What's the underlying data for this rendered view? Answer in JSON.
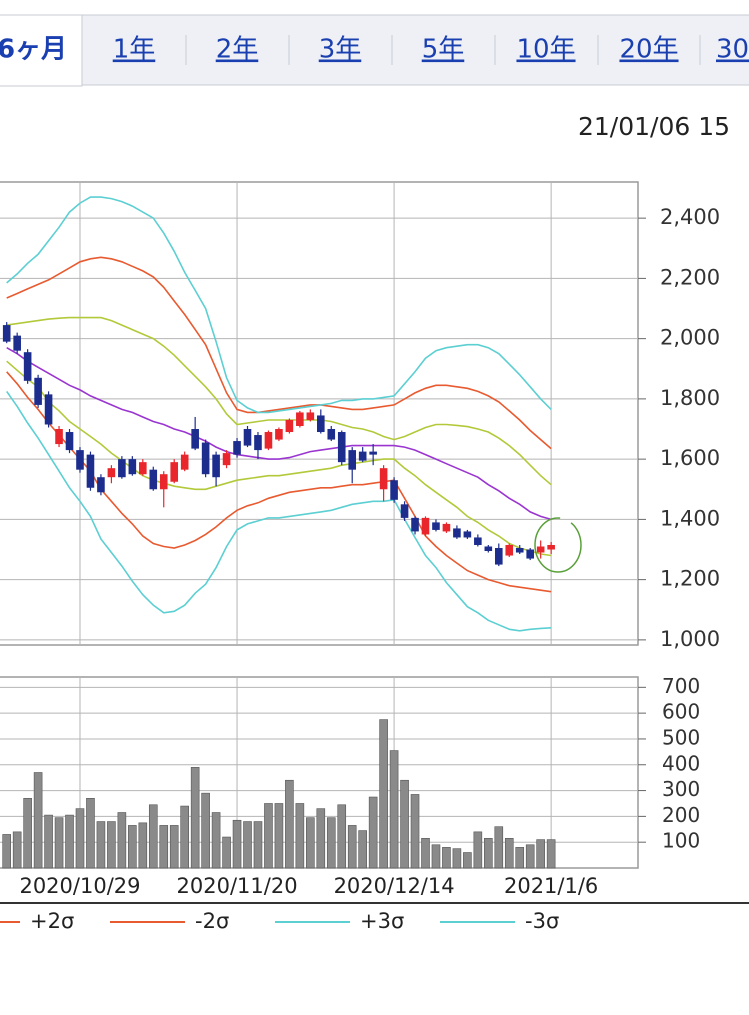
{
  "tabs": [
    "6ヶ月",
    "1年",
    "2年",
    "3年",
    "5年",
    "10年",
    "20年",
    "30"
  ],
  "timestamp": "21/01/06 15",
  "chart_data": [
    {
      "type": "candlestick",
      "categories": [
        null,
        null,
        null,
        null,
        null,
        null,
        null,
        "2020/10/29",
        null,
        null,
        null,
        null,
        null,
        null,
        null,
        null,
        null,
        null,
        null,
        null,
        null,
        null,
        "2020/11/20",
        null,
        null,
        null,
        null,
        null,
        null,
        null,
        null,
        null,
        null,
        null,
        null,
        null,
        null,
        "2020/12/14",
        null,
        null,
        null,
        null,
        null,
        null,
        null,
        null,
        null,
        null,
        null,
        null,
        null,
        null,
        "2021/1/6"
      ],
      "open": [
        2045,
        2010,
        1955,
        1870,
        1815,
        1650,
        1690,
        1630,
        1615,
        1540,
        1540,
        1600,
        1600,
        1550,
        1565,
        1500,
        1525,
        1565,
        1700,
        1655,
        1615,
        1580,
        1660,
        1700,
        1680,
        1635,
        1665,
        1690,
        1710,
        1730,
        1745,
        1700,
        1690,
        1630,
        1625,
        1625,
        1500,
        1530,
        1450,
        1405,
        1350,
        1390,
        1360,
        1370,
        1360,
        1340,
        1310,
        1305,
        1280,
        1305,
        1300,
        1290,
        1300
      ],
      "high": [
        2055,
        2020,
        1965,
        1880,
        1825,
        1710,
        1700,
        1640,
        1625,
        1550,
        1580,
        1610,
        1610,
        1600,
        1575,
        1560,
        1600,
        1625,
        1740,
        1665,
        1625,
        1630,
        1670,
        1710,
        1690,
        1695,
        1705,
        1735,
        1760,
        1765,
        1765,
        1710,
        1695,
        1640,
        1640,
        1650,
        1580,
        1540,
        1460,
        1410,
        1410,
        1400,
        1390,
        1380,
        1365,
        1350,
        1315,
        1320,
        1320,
        1315,
        1305,
        1330,
        1325
      ],
      "low": [
        1985,
        1950,
        1850,
        1770,
        1705,
        1640,
        1620,
        1555,
        1495,
        1480,
        1520,
        1535,
        1545,
        1545,
        1495,
        1440,
        1520,
        1560,
        1630,
        1540,
        1510,
        1570,
        1605,
        1640,
        1600,
        1630,
        1660,
        1685,
        1705,
        1725,
        1685,
        1660,
        1580,
        1520,
        1590,
        1580,
        1460,
        1455,
        1395,
        1350,
        1345,
        1360,
        1355,
        1335,
        1335,
        1310,
        1290,
        1245,
        1275,
        1285,
        1265,
        1270,
        1285
      ],
      "close": [
        1990,
        1960,
        1860,
        1780,
        1715,
        1700,
        1630,
        1565,
        1505,
        1490,
        1570,
        1540,
        1550,
        1590,
        1500,
        1550,
        1590,
        1615,
        1635,
        1550,
        1540,
        1620,
        1615,
        1645,
        1630,
        1690,
        1700,
        1730,
        1755,
        1755,
        1690,
        1665,
        1590,
        1565,
        1595,
        1615,
        1570,
        1465,
        1405,
        1360,
        1405,
        1365,
        1385,
        1340,
        1340,
        1315,
        1295,
        1250,
        1315,
        1290,
        1270,
        1310,
        1315
      ],
      "up_color": "#e8262c",
      "down_color": "#1c2d8e",
      "series": [
        {
          "color": "#9a35d0",
          "values": [
            1970,
            1950,
            1925,
            1905,
            1885,
            1865,
            1845,
            1830,
            1810,
            1795,
            1780,
            1765,
            1755,
            1740,
            1725,
            1715,
            1700,
            1690,
            1675,
            1660,
            1640,
            1625,
            1615,
            1610,
            1605,
            1600,
            1600,
            1605,
            1615,
            1625,
            1630,
            1635,
            1640,
            1645,
            1645,
            1645,
            1645,
            1645,
            1640,
            1630,
            1615,
            1600,
            1585,
            1570,
            1555,
            1540,
            1515,
            1495,
            1470,
            1450,
            1425,
            1410,
            1400
          ]
        },
        {
          "color": "#b3c93a",
          "values": [
            2045,
            2050,
            2055,
            2060,
            2065,
            2068,
            2070,
            2070,
            2070,
            2070,
            2060,
            2045,
            2030,
            2015,
            2000,
            1975,
            1945,
            1910,
            1875,
            1840,
            1800,
            1750,
            1715,
            1720,
            1725,
            1730,
            1730,
            1730,
            1730,
            1730,
            1730,
            1725,
            1715,
            1705,
            1700,
            1690,
            1675,
            1665,
            1675,
            1690,
            1705,
            1715,
            1715,
            1712,
            1708,
            1700,
            1690,
            1670,
            1645,
            1615,
            1580,
            1545,
            1515
          ]
        },
        {
          "color": "#b3c93a",
          "values": [
            1925,
            1895,
            1865,
            1840,
            1790,
            1760,
            1725,
            1700,
            1675,
            1650,
            1620,
            1595,
            1570,
            1545,
            1530,
            1520,
            1510,
            1505,
            1500,
            1500,
            1510,
            1520,
            1530,
            1535,
            1540,
            1545,
            1545,
            1550,
            1555,
            1560,
            1565,
            1570,
            1580,
            1585,
            1590,
            1595,
            1600,
            1600,
            1570,
            1545,
            1515,
            1490,
            1465,
            1440,
            1410,
            1390,
            1365,
            1345,
            1320,
            1305,
            1295,
            1285,
            1280
          ]
        },
        {
          "name": "+2σ",
          "color": "#e85a30",
          "values": [
            2135,
            2150,
            2165,
            2180,
            2195,
            2215,
            2235,
            2255,
            2265,
            2270,
            2265,
            2255,
            2240,
            2225,
            2205,
            2170,
            2125,
            2080,
            2030,
            1980,
            1900,
            1820,
            1765,
            1755,
            1755,
            1760,
            1765,
            1770,
            1775,
            1780,
            1780,
            1775,
            1770,
            1765,
            1765,
            1770,
            1775,
            1780,
            1800,
            1820,
            1835,
            1845,
            1845,
            1840,
            1835,
            1825,
            1810,
            1790,
            1760,
            1730,
            1695,
            1665,
            1635
          ]
        },
        {
          "name": "-2σ",
          "color": "#e85a30",
          "values": [
            1890,
            1850,
            1805,
            1765,
            1720,
            1680,
            1640,
            1600,
            1560,
            1500,
            1460,
            1420,
            1385,
            1345,
            1320,
            1310,
            1305,
            1315,
            1330,
            1350,
            1375,
            1405,
            1430,
            1445,
            1455,
            1470,
            1480,
            1490,
            1495,
            1500,
            1505,
            1505,
            1510,
            1515,
            1515,
            1520,
            1525,
            1530,
            1470,
            1410,
            1345,
            1310,
            1280,
            1255,
            1230,
            1215,
            1200,
            1190,
            1180,
            1175,
            1170,
            1165,
            1160
          ]
        },
        {
          "name": "+3σ",
          "color": "#5ccfd2",
          "values": [
            2185,
            2215,
            2250,
            2280,
            2325,
            2370,
            2420,
            2450,
            2470,
            2470,
            2465,
            2455,
            2440,
            2420,
            2400,
            2350,
            2290,
            2220,
            2160,
            2100,
            1990,
            1870,
            1795,
            1770,
            1755,
            1755,
            1760,
            1765,
            1770,
            1775,
            1780,
            1785,
            1795,
            1795,
            1800,
            1800,
            1805,
            1810,
            1850,
            1890,
            1935,
            1960,
            1970,
            1975,
            1980,
            1980,
            1970,
            1950,
            1915,
            1880,
            1840,
            1800,
            1765
          ]
        },
        {
          "name": "-3σ",
          "color": "#5ccfd2",
          "values": [
            1825,
            1775,
            1720,
            1670,
            1615,
            1560,
            1505,
            1460,
            1410,
            1335,
            1290,
            1245,
            1195,
            1150,
            1115,
            1090,
            1095,
            1115,
            1155,
            1185,
            1240,
            1310,
            1365,
            1385,
            1395,
            1405,
            1405,
            1410,
            1415,
            1420,
            1425,
            1430,
            1440,
            1450,
            1455,
            1460,
            1460,
            1465,
            1400,
            1340,
            1280,
            1240,
            1190,
            1150,
            1110,
            1090,
            1065,
            1050,
            1035,
            1030,
            1035,
            1038,
            1040
          ]
        }
      ],
      "ylim": [
        983,
        2520
      ],
      "yticks": [
        {
          "value": 1000,
          "label": "1,000"
        },
        {
          "value": 1200,
          "label": "1,200"
        },
        {
          "value": 1400,
          "label": "1,400"
        },
        {
          "value": 1600,
          "label": "1,600"
        },
        {
          "value": 1800,
          "label": "1,800"
        },
        {
          "value": 2000,
          "label": "2,000"
        },
        {
          "value": 2200,
          "label": "2,200"
        },
        {
          "value": 2400,
          "label": "2,400"
        }
      ],
      "grid": true
    },
    {
      "type": "bar",
      "values": [
        130,
        140,
        270,
        370,
        205,
        195,
        205,
        230,
        270,
        180,
        180,
        215,
        165,
        175,
        245,
        165,
        165,
        240,
        390,
        290,
        215,
        120,
        185,
        180,
        180,
        250,
        250,
        340,
        250,
        195,
        230,
        195,
        245,
        165,
        145,
        275,
        575,
        455,
        340,
        285,
        115,
        90,
        80,
        75,
        60,
        140,
        115,
        160,
        115,
        80,
        90,
        110,
        110
      ],
      "color": "#8a8a8a",
      "ylim": [
        0,
        740
      ],
      "yticks": [
        100,
        200,
        300,
        400,
        500,
        600,
        700
      ],
      "grid": true
    }
  ]
}
